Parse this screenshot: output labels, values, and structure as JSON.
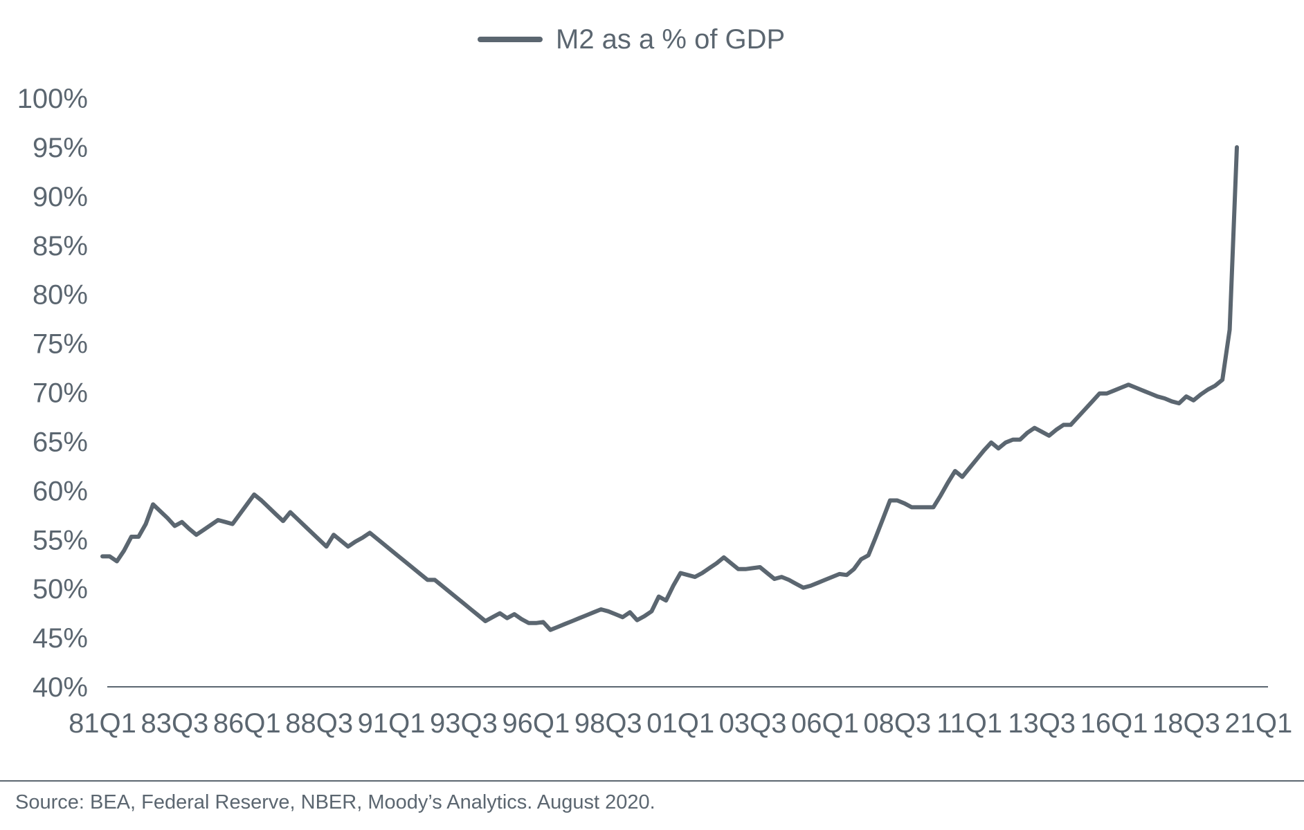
{
  "chart_data": {
    "type": "line",
    "title": "",
    "xlabel": "",
    "ylabel": "",
    "ylim": [
      40,
      100
    ],
    "y_ticks": [
      "40%",
      "45%",
      "50%",
      "55%",
      "60%",
      "65%",
      "70%",
      "75%",
      "80%",
      "85%",
      "90%",
      "95%",
      "100%"
    ],
    "x_ticks": [
      "81Q1",
      "83Q3",
      "86Q1",
      "88Q3",
      "91Q1",
      "93Q3",
      "96Q1",
      "98Q3",
      "01Q1",
      "03Q3",
      "06Q1",
      "08Q3",
      "11Q1",
      "13Q3",
      "16Q1",
      "18Q3",
      "21Q1"
    ],
    "grid": false,
    "legend_position": "top-center",
    "line_color": "#5b6670",
    "series": [
      {
        "name": "M2 as a % of GDP",
        "points": [
          [
            "81Q1",
            53.3
          ],
          [
            "81Q2",
            53.3
          ],
          [
            "81Q3",
            52.8
          ],
          [
            "81Q4",
            53.9
          ],
          [
            "82Q1",
            55.3
          ],
          [
            "82Q2",
            55.3
          ],
          [
            "82Q3",
            56.6
          ],
          [
            "82Q4",
            58.6
          ],
          [
            "83Q1",
            57.9
          ],
          [
            "83Q2",
            57.2
          ],
          [
            "83Q3",
            56.4
          ],
          [
            "83Q4",
            56.8
          ],
          [
            "84Q1",
            56.1
          ],
          [
            "84Q2",
            55.5
          ],
          [
            "84Q3",
            56.0
          ],
          [
            "84Q4",
            56.5
          ],
          [
            "85Q1",
            57.0
          ],
          [
            "85Q2",
            56.8
          ],
          [
            "85Q3",
            56.6
          ],
          [
            "85Q4",
            57.6
          ],
          [
            "86Q1",
            58.6
          ],
          [
            "86Q2",
            59.6
          ],
          [
            "86Q3",
            59.0
          ],
          [
            "86Q4",
            58.3
          ],
          [
            "87Q1",
            57.6
          ],
          [
            "87Q2",
            56.9
          ],
          [
            "87Q3",
            57.8
          ],
          [
            "87Q4",
            57.1
          ],
          [
            "88Q1",
            56.4
          ],
          [
            "88Q2",
            55.7
          ],
          [
            "88Q3",
            55.0
          ],
          [
            "88Q4",
            54.3
          ],
          [
            "89Q1",
            55.5
          ],
          [
            "89Q2",
            54.9
          ],
          [
            "89Q3",
            54.3
          ],
          [
            "89Q4",
            54.8
          ],
          [
            "90Q1",
            55.2
          ],
          [
            "90Q2",
            55.7
          ],
          [
            "90Q3",
            55.1
          ],
          [
            "90Q4",
            54.5
          ],
          [
            "91Q1",
            53.9
          ],
          [
            "91Q2",
            53.3
          ],
          [
            "91Q3",
            52.7
          ],
          [
            "91Q4",
            52.1
          ],
          [
            "92Q1",
            51.5
          ],
          [
            "92Q2",
            50.9
          ],
          [
            "92Q3",
            50.9
          ],
          [
            "92Q4",
            50.3
          ],
          [
            "93Q1",
            49.7
          ],
          [
            "93Q2",
            49.1
          ],
          [
            "93Q3",
            48.5
          ],
          [
            "93Q4",
            47.9
          ],
          [
            "94Q1",
            47.3
          ],
          [
            "94Q2",
            46.7
          ],
          [
            "94Q3",
            47.1
          ],
          [
            "94Q4",
            47.5
          ],
          [
            "95Q1",
            47.0
          ],
          [
            "95Q2",
            47.4
          ],
          [
            "95Q3",
            46.9
          ],
          [
            "95Q4",
            46.5
          ],
          [
            "96Q1",
            46.5
          ],
          [
            "96Q2",
            46.6
          ],
          [
            "96Q3",
            45.8
          ],
          [
            "96Q4",
            46.1
          ],
          [
            "97Q1",
            46.4
          ],
          [
            "97Q2",
            46.7
          ],
          [
            "97Q3",
            47.0
          ],
          [
            "97Q4",
            47.3
          ],
          [
            "98Q1",
            47.6
          ],
          [
            "98Q2",
            47.9
          ],
          [
            "98Q3",
            47.7
          ],
          [
            "98Q4",
            47.4
          ],
          [
            "99Q1",
            47.1
          ],
          [
            "99Q2",
            47.6
          ],
          [
            "99Q3",
            46.8
          ],
          [
            "99Q4",
            47.2
          ],
          [
            "00Q1",
            47.7
          ],
          [
            "00Q2",
            49.2
          ],
          [
            "00Q3",
            48.8
          ],
          [
            "00Q4",
            50.3
          ],
          [
            "01Q1",
            51.6
          ],
          [
            "01Q2",
            51.4
          ],
          [
            "01Q3",
            51.2
          ],
          [
            "01Q4",
            51.6
          ],
          [
            "02Q1",
            52.1
          ],
          [
            "02Q2",
            52.6
          ],
          [
            "02Q3",
            53.2
          ],
          [
            "02Q4",
            52.6
          ],
          [
            "03Q1",
            52.0
          ],
          [
            "03Q2",
            52.0
          ],
          [
            "03Q3",
            52.1
          ],
          [
            "03Q4",
            52.2
          ],
          [
            "04Q1",
            51.6
          ],
          [
            "04Q2",
            51.0
          ],
          [
            "04Q3",
            51.2
          ],
          [
            "04Q4",
            50.9
          ],
          [
            "05Q1",
            50.5
          ],
          [
            "05Q2",
            50.1
          ],
          [
            "05Q3",
            50.3
          ],
          [
            "05Q4",
            50.6
          ],
          [
            "06Q1",
            50.9
          ],
          [
            "06Q2",
            51.2
          ],
          [
            "06Q3",
            51.5
          ],
          [
            "06Q4",
            51.4
          ],
          [
            "07Q1",
            52.0
          ],
          [
            "07Q2",
            53.0
          ],
          [
            "07Q3",
            53.4
          ],
          [
            "07Q4",
            55.2
          ],
          [
            "08Q1",
            57.1
          ],
          [
            "08Q2",
            59.0
          ],
          [
            "08Q3",
            59.0
          ],
          [
            "08Q4",
            58.7
          ],
          [
            "09Q1",
            58.3
          ],
          [
            "09Q2",
            58.3
          ],
          [
            "09Q3",
            58.3
          ],
          [
            "09Q4",
            58.3
          ],
          [
            "10Q1",
            59.5
          ],
          [
            "10Q2",
            60.8
          ],
          [
            "10Q3",
            62.0
          ],
          [
            "10Q4",
            61.4
          ],
          [
            "11Q1",
            62.3
          ],
          [
            "11Q2",
            63.2
          ],
          [
            "11Q3",
            64.1
          ],
          [
            "11Q4",
            64.9
          ],
          [
            "12Q1",
            64.3
          ],
          [
            "12Q2",
            64.9
          ],
          [
            "12Q3",
            65.2
          ],
          [
            "12Q4",
            65.2
          ],
          [
            "13Q1",
            65.9
          ],
          [
            "13Q2",
            66.4
          ],
          [
            "13Q3",
            66.0
          ],
          [
            "13Q4",
            65.6
          ],
          [
            "14Q1",
            66.2
          ],
          [
            "14Q2",
            66.7
          ],
          [
            "14Q3",
            66.7
          ],
          [
            "14Q4",
            67.5
          ],
          [
            "15Q1",
            68.3
          ],
          [
            "15Q2",
            69.1
          ],
          [
            "15Q3",
            69.9
          ],
          [
            "15Q4",
            69.9
          ],
          [
            "16Q1",
            70.2
          ],
          [
            "16Q2",
            70.5
          ],
          [
            "16Q3",
            70.8
          ],
          [
            "16Q4",
            70.5
          ],
          [
            "17Q1",
            70.2
          ],
          [
            "17Q2",
            69.9
          ],
          [
            "17Q3",
            69.6
          ],
          [
            "17Q4",
            69.4
          ],
          [
            "18Q1",
            69.1
          ],
          [
            "18Q2",
            68.9
          ],
          [
            "18Q3",
            69.6
          ],
          [
            "18Q4",
            69.2
          ],
          [
            "19Q1",
            69.8
          ],
          [
            "19Q2",
            70.3
          ],
          [
            "19Q3",
            70.7
          ],
          [
            "19Q4",
            71.3
          ],
          [
            "20Q1",
            76.4
          ],
          [
            "20Q2",
            95.0
          ]
        ]
      }
    ]
  },
  "footer": {
    "source": "Source: BEA, Federal Reserve, NBER, Moody’s Analytics. August 2020."
  }
}
